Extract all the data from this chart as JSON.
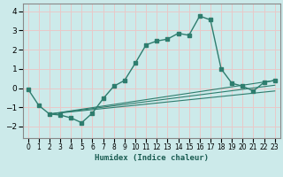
{
  "xlabel": "Humidex (Indice chaleur)",
  "ylabel": "",
  "background_color": "#cceaea",
  "grid_color": "#e8c8c8",
  "line_color": "#2e7d6e",
  "xlim": [
    -0.5,
    23.5
  ],
  "ylim": [
    -2.6,
    4.4
  ],
  "xticks": [
    0,
    1,
    2,
    3,
    4,
    5,
    6,
    7,
    8,
    9,
    10,
    11,
    12,
    13,
    14,
    15,
    16,
    17,
    18,
    19,
    20,
    21,
    22,
    23
  ],
  "yticks": [
    -2,
    -1,
    0,
    1,
    2,
    3,
    4
  ],
  "main_series": {
    "x": [
      0,
      1,
      2,
      3,
      4,
      5,
      6,
      7,
      8,
      9,
      10,
      11,
      12,
      13,
      14,
      15,
      16,
      17,
      18,
      19,
      20,
      21,
      22,
      23
    ],
    "y": [
      -0.05,
      -0.9,
      -1.35,
      -1.4,
      -1.55,
      -1.8,
      -1.3,
      -0.55,
      0.1,
      0.4,
      1.3,
      2.25,
      2.45,
      2.55,
      2.85,
      2.75,
      3.75,
      3.55,
      1.0,
      0.25,
      0.1,
      -0.15,
      0.3,
      0.4
    ]
  },
  "straight_lines": [
    {
      "x": [
        2,
        23
      ],
      "y": [
        -1.35,
        0.4
      ]
    },
    {
      "x": [
        2,
        23
      ],
      "y": [
        -1.35,
        0.15
      ]
    },
    {
      "x": [
        2,
        23
      ],
      "y": [
        -1.35,
        -0.15
      ]
    }
  ]
}
